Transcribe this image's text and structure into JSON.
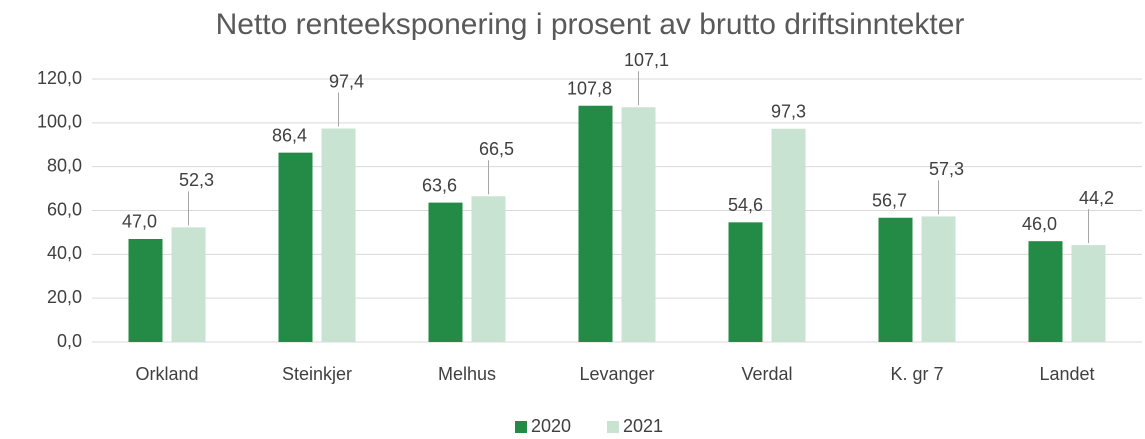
{
  "chart_data": {
    "type": "bar",
    "title": "Netto renteeksponering i prosent av brutto driftsinntekter",
    "categories": [
      "Orkland",
      "Steinkjer",
      "Melhus",
      "Levanger",
      "Verdal",
      "K. gr 7",
      "Landet"
    ],
    "series": [
      {
        "name": "2020",
        "color": "#238b45",
        "values": [
          47.0,
          86.4,
          63.6,
          107.8,
          54.6,
          56.7,
          46.0
        ],
        "value_labels": [
          "47,0",
          "86,4",
          "63,6",
          "107,8",
          "54,6",
          "56,7",
          "46,0"
        ]
      },
      {
        "name": "2021",
        "color": "#c8e3d2",
        "values": [
          52.3,
          97.4,
          66.5,
          107.1,
          97.3,
          57.3,
          44.2
        ],
        "value_labels": [
          "52,3",
          "97,4",
          "66,5",
          "107,1",
          "97,3",
          "57,3",
          "44,2"
        ]
      }
    ],
    "ylim": [
      0,
      120
    ],
    "yticks": [
      {
        "value": 0,
        "label": "0,0"
      },
      {
        "value": 20,
        "label": "20,0"
      },
      {
        "value": 40,
        "label": "40,0"
      },
      {
        "value": 60,
        "label": "60,0"
      },
      {
        "value": 80,
        "label": "80,0"
      },
      {
        "value": 100,
        "label": "100,0"
      },
      {
        "value": 120,
        "label": "120,0"
      }
    ],
    "grid": true,
    "legend": "bottom"
  }
}
